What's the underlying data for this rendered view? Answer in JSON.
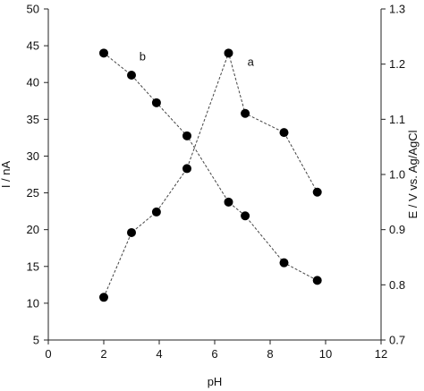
{
  "chart_data": {
    "type": "line",
    "title": "",
    "xlabel": "pH",
    "ylabel_left": "I / nA",
    "ylabel_right": "E / V vs. Ag/AgCl",
    "xlim": [
      0,
      12
    ],
    "ylim_left": [
      5,
      50
    ],
    "ylim_right": [
      0.7,
      1.3
    ],
    "x_ticks": [
      0,
      2,
      4,
      6,
      8,
      10,
      12
    ],
    "y_left_ticks": [
      5,
      10,
      15,
      20,
      25,
      30,
      35,
      40,
      45,
      50
    ],
    "y_right_ticks": [
      "0.7",
      "0.8",
      "0.9",
      "1.0",
      "1.1",
      "1.2",
      "1.3"
    ],
    "grid": false,
    "legend": "none",
    "series": [
      {
        "axis": "left",
        "annotation": "a",
        "annotation_at": [
          7.3,
          42.3
        ],
        "x": [
          2.0,
          3.0,
          3.9,
          5.0,
          6.5,
          7.1,
          8.5,
          9.7
        ],
        "y": [
          10.8,
          19.6,
          22.4,
          28.3,
          44.0,
          35.8,
          33.2,
          25.1
        ]
      },
      {
        "axis": "right",
        "annotation": "b",
        "annotation_at": [
          3.4,
          1.207
        ],
        "x": [
          2.0,
          3.0,
          3.9,
          5.0,
          6.5,
          7.1,
          8.5,
          9.7
        ],
        "y": [
          1.22,
          1.18,
          1.13,
          1.07,
          0.95,
          0.925,
          0.84,
          0.808
        ]
      }
    ]
  }
}
